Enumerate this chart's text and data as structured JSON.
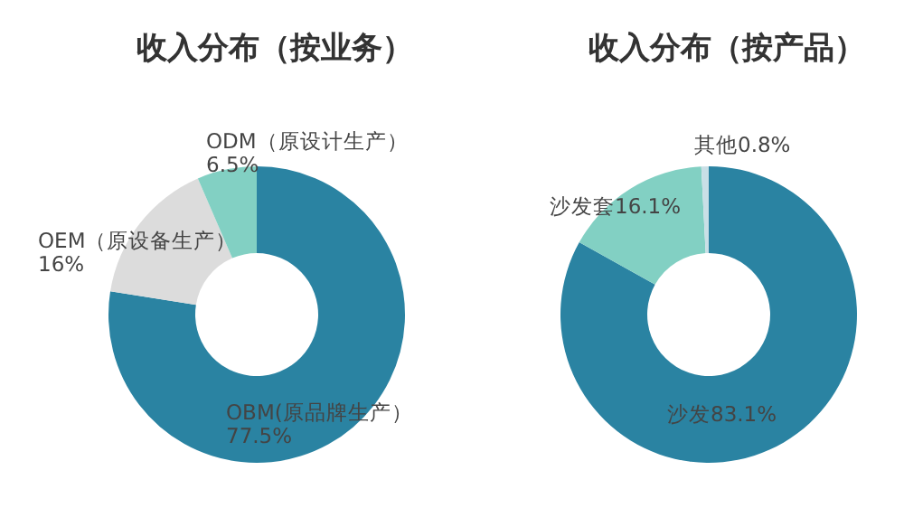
{
  "chart_data": [
    {
      "type": "donut",
      "title": "收入分布（按业务）",
      "categories": [
        "OBM(原品牌生产）",
        "OEM（原设备生产）",
        "ODM（原设计生产）"
      ],
      "values": [
        77.5,
        16,
        6.5
      ],
      "colors": [
        "#2a83a2",
        "#dcdcdc",
        "#82d0c3"
      ],
      "value_labels": [
        "77.5%",
        "16%",
        "6.5%"
      ]
    },
    {
      "type": "donut",
      "title": "收入分布（按产品）",
      "categories": [
        "沙发",
        "沙发套",
        "其他"
      ],
      "values": [
        83.1,
        16.1,
        0.8
      ],
      "colors": [
        "#2a83a2",
        "#82d0c3",
        "#c9dfe6"
      ],
      "value_labels": [
        "83.1%",
        "16.1%",
        "0.8%"
      ]
    }
  ]
}
